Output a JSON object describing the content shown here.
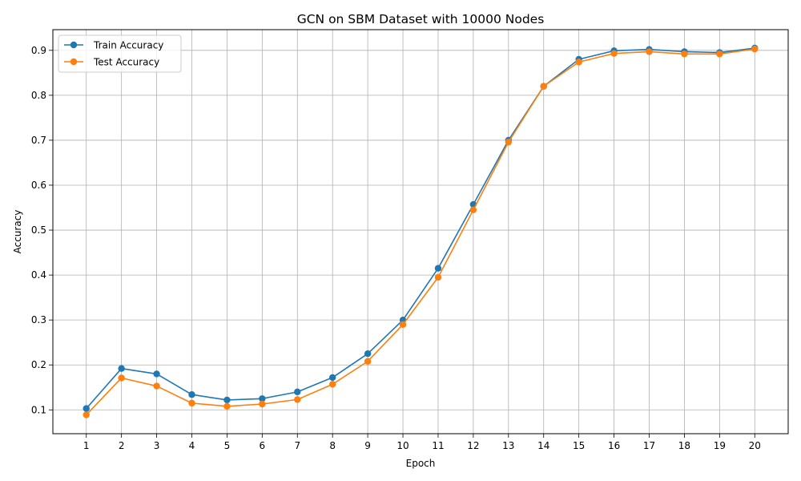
{
  "chart_data": {
    "type": "line",
    "title": "GCN on SBM Dataset with 10000 Nodes",
    "xlabel": "Epoch",
    "ylabel": "Accuracy",
    "x": [
      1,
      2,
      3,
      4,
      5,
      6,
      7,
      8,
      9,
      10,
      11,
      12,
      13,
      14,
      15,
      16,
      17,
      18,
      19,
      20
    ],
    "xticks": [
      "1",
      "2",
      "3",
      "4",
      "5",
      "6",
      "7",
      "8",
      "9",
      "10",
      "11",
      "12",
      "13",
      "14",
      "15",
      "16",
      "17",
      "18",
      "19",
      "20"
    ],
    "yticks": [
      "0.1",
      "0.2",
      "0.3",
      "0.4",
      "0.5",
      "0.6",
      "0.7",
      "0.8",
      "0.9"
    ],
    "xlim": [
      0.05,
      20.95
    ],
    "ylim": [
      0.047,
      0.946
    ],
    "grid": true,
    "legend_position": "upper-left",
    "series": [
      {
        "name": "Train Accuracy",
        "color": "#1f77b4",
        "marker": "circle",
        "values": [
          0.103,
          0.192,
          0.18,
          0.134,
          0.122,
          0.125,
          0.14,
          0.172,
          0.225,
          0.3,
          0.415,
          0.557,
          0.7,
          0.82,
          0.88,
          0.899,
          0.902,
          0.897,
          0.895,
          0.905
        ]
      },
      {
        "name": "Test Accuracy",
        "color": "#ff7f0e",
        "marker": "circle",
        "values": [
          0.089,
          0.171,
          0.153,
          0.115,
          0.108,
          0.113,
          0.123,
          0.157,
          0.208,
          0.29,
          0.395,
          0.545,
          0.696,
          0.82,
          0.874,
          0.893,
          0.897,
          0.892,
          0.892,
          0.903
        ]
      }
    ]
  }
}
